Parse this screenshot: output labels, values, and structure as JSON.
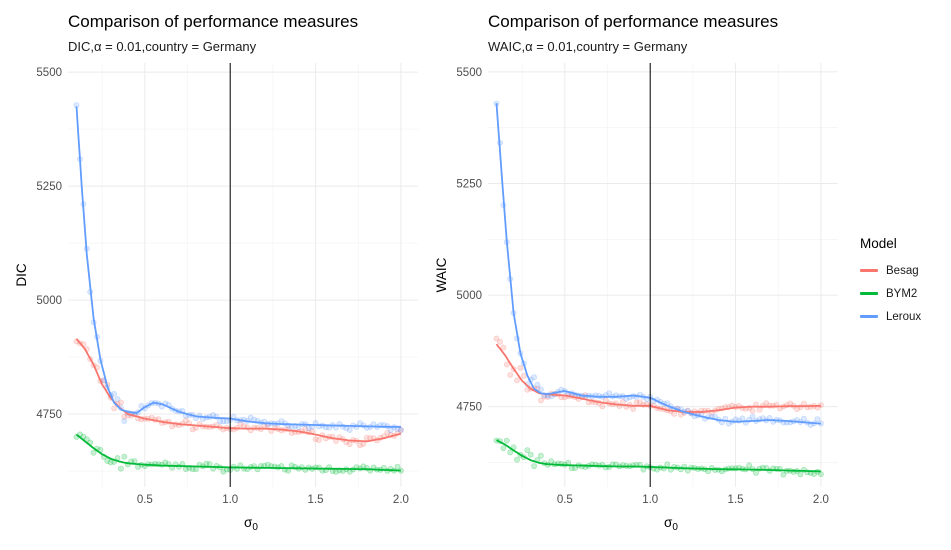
{
  "chart_data": [
    {
      "type": "scatter",
      "title": "Comparison of performance measures",
      "subtitle": "DIC,α = 0.01,country = Germany",
      "xlabel": "σ0",
      "ylabel": "DIC",
      "xlim": [
        0.05,
        2.1
      ],
      "ylim": [
        4590,
        5520
      ],
      "xticks": [
        "0.5",
        "1.0",
        "1.5",
        "2.0"
      ],
      "yticks": [
        "4750",
        "5000",
        "5250",
        "5500"
      ],
      "vline_x": 1.0,
      "series": [
        {
          "name": "Besag",
          "color": "#F8766D",
          "trend": {
            "x": [
              0.1,
              0.15,
              0.2,
              0.25,
              0.3,
              0.35,
              0.4,
              0.5,
              0.6,
              0.7,
              0.8,
              0.9,
              1.0,
              1.1,
              1.2,
              1.3,
              1.4,
              1.5,
              1.6,
              1.7,
              1.8,
              1.9,
              2.0
            ],
            "y": [
              4915,
              4892,
              4858,
              4815,
              4785,
              4765,
              4750,
              4740,
              4733,
              4728,
              4725,
              4722,
              4719,
              4718,
              4718,
              4716,
              4712,
              4705,
              4697,
              4692,
              4690,
              4697,
              4707
            ]
          }
        },
        {
          "name": "BYM2",
          "color": "#00BA38",
          "trend": {
            "x": [
              0.1,
              0.15,
              0.2,
              0.25,
              0.3,
              0.35,
              0.4,
              0.5,
              0.6,
              0.7,
              0.8,
              0.9,
              1.0,
              1.2,
              1.4,
              1.6,
              1.8,
              2.0
            ],
            "y": [
              4705,
              4690,
              4675,
              4662,
              4652,
              4646,
              4642,
              4639,
              4637,
              4636,
              4635,
              4634,
              4633,
              4632,
              4631,
              4630,
              4629,
              4626
            ]
          }
        },
        {
          "name": "Leroux",
          "color": "#619CFF",
          "trend": {
            "x": [
              0.1,
              0.13,
              0.16,
              0.2,
              0.24,
              0.28,
              0.32,
              0.36,
              0.4,
              0.45,
              0.5,
              0.55,
              0.6,
              0.7,
              0.8,
              0.9,
              1.0,
              1.1,
              1.2,
              1.3,
              1.4,
              1.5,
              1.6,
              1.7,
              1.8,
              1.9,
              2.0
            ],
            "y": [
              5425,
              5250,
              5100,
              4960,
              4870,
              4810,
              4775,
              4760,
              4755,
              4752,
              4765,
              4775,
              4772,
              4755,
              4745,
              4742,
              4740,
              4734,
              4730,
              4728,
              4727,
              4726,
              4725,
              4724,
              4723,
              4722,
              4722
            ]
          }
        }
      ]
    },
    {
      "type": "scatter",
      "title": "Comparison of performance measures",
      "subtitle": "WAIC,α = 0.01,country = Germany",
      "xlabel": "σ0",
      "ylabel": "WAIC",
      "xlim": [
        0.05,
        2.1
      ],
      "ylim": [
        4570,
        5520
      ],
      "xticks": [
        "0.5",
        "1.0",
        "1.5",
        "2.0"
      ],
      "yticks": [
        "4750",
        "5000",
        "5250",
        "5500"
      ],
      "vline_x": 1.0,
      "series": [
        {
          "name": "Besag",
          "color": "#F8766D",
          "trend": {
            "x": [
              0.1,
              0.15,
              0.2,
              0.25,
              0.3,
              0.35,
              0.4,
              0.5,
              0.6,
              0.7,
              0.8,
              0.9,
              1.0,
              1.1,
              1.2,
              1.3,
              1.4,
              1.5,
              1.6,
              1.7,
              1.8,
              1.9,
              2.0
            ],
            "y": [
              4890,
              4865,
              4835,
              4808,
              4790,
              4780,
              4778,
              4775,
              4768,
              4760,
              4755,
              4752,
              4752,
              4742,
              4738,
              4738,
              4742,
              4748,
              4750,
              4750,
              4751,
              4751,
              4752
            ]
          }
        },
        {
          "name": "BYM2",
          "color": "#00BA38",
          "trend": {
            "x": [
              0.1,
              0.15,
              0.2,
              0.25,
              0.3,
              0.35,
              0.4,
              0.5,
              0.6,
              0.7,
              0.8,
              0.9,
              1.0,
              1.2,
              1.4,
              1.6,
              1.8,
              2.0
            ],
            "y": [
              4675,
              4665,
              4652,
              4640,
              4630,
              4624,
              4621,
              4619,
              4618,
              4617,
              4616,
              4616,
              4615,
              4612,
              4610,
              4609,
              4607,
              4605
            ]
          }
        },
        {
          "name": "Leroux",
          "color": "#619CFF",
          "trend": {
            "x": [
              0.1,
              0.13,
              0.16,
              0.2,
              0.24,
              0.28,
              0.32,
              0.36,
              0.4,
              0.45,
              0.5,
              0.55,
              0.6,
              0.7,
              0.8,
              0.9,
              1.0,
              1.1,
              1.2,
              1.3,
              1.4,
              1.5,
              1.6,
              1.7,
              1.8,
              1.9,
              2.0
            ],
            "y": [
              5430,
              5270,
              5120,
              4960,
              4870,
              4820,
              4790,
              4780,
              4778,
              4782,
              4785,
              4780,
              4775,
              4772,
              4772,
              4775,
              4770,
              4752,
              4738,
              4728,
              4720,
              4716,
              4718,
              4720,
              4718,
              4715,
              4712
            ]
          }
        }
      ]
    }
  ],
  "legend": {
    "title": "Model",
    "items": [
      {
        "label": "Besag",
        "color": "#F8766D"
      },
      {
        "label": "BYM2",
        "color": "#00BA38"
      },
      {
        "label": "Leroux",
        "color": "#619CFF"
      }
    ]
  }
}
